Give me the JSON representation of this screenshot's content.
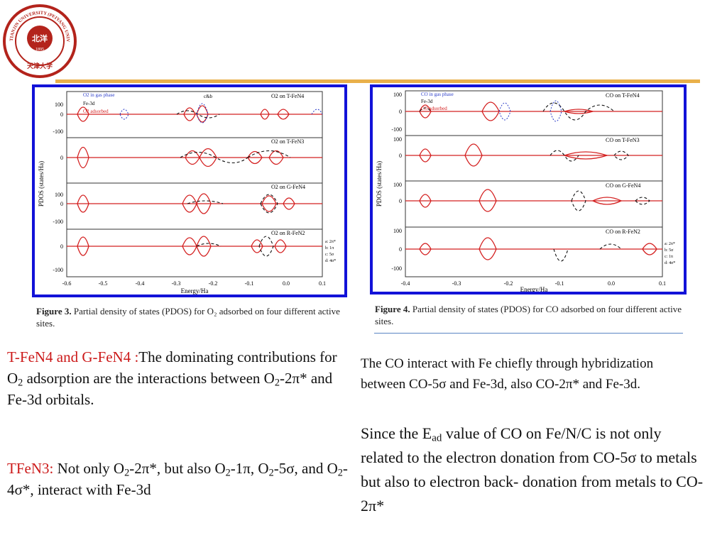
{
  "logo": {
    "name_top": "TIANJIN UNIVERSITY (PEIYANG UNIVERSITY)",
    "year": "1895",
    "seal": "北洋",
    "name_bottom": "天津大学"
  },
  "figure3": {
    "ylabel": "PDOS (states/Ha)",
    "xlabel": "Energy/Ha",
    "xticks": [
      "-0.6",
      "-0.5",
      "-0.4",
      "-0.3",
      "-0.2",
      "-0.1",
      "0.0",
      "0.1"
    ],
    "legend": [
      "O2 in gas phase",
      "Fe-3d",
      "O2 adsorbed"
    ],
    "legend_extra": "c&b",
    "panels": [
      "O2 on T-FeN4",
      "O2 on T-FeN3",
      "O2 on G-FeN4",
      "O2 on R-FeN2"
    ],
    "ytick_labels": [
      "100",
      "0",
      "-100"
    ],
    "key": [
      "a: 2π*",
      "b: 1π",
      "c: 5σ",
      "d: 4σ*"
    ],
    "caption_label": "Figure 3.",
    "caption_text": "Partial density of states (PDOS) for O₂ adsorbed on four different active sites."
  },
  "figure4": {
    "ylabel": "PDOS (states/Ha)",
    "xlabel": "Energy/Ha",
    "xticks": [
      "-0.4",
      "-0.3",
      "-0.2",
      "-0.1",
      "0.0",
      "0.1"
    ],
    "legend": [
      "CO in gas phase",
      "Fe-3d",
      "CO adsorbed"
    ],
    "panels": [
      "CO on T-FeN4",
      "CO on T-FeN3",
      "CO on G-FeN4",
      "CO on R-FeN2"
    ],
    "ytick_labels": [
      "100",
      "0",
      "-100"
    ],
    "key": [
      "a: 2π*",
      "b: 5σ",
      "c: 1π",
      "d: 4σ*"
    ],
    "caption_label": "Figure 4.",
    "caption_text": "Partial density of states (PDOS) for CO adsorbed on four different active sites."
  },
  "left_text": {
    "p1_label": "T-FeN4 and G-FeN4 :",
    "p1_a": "The  dominating contributions for O",
    "p1_b": " adsorption  are the interactions between O",
    "p1_c": "-2π* and Fe-3d orbitals.",
    "p2_label": "TFeN3:",
    "p2_a": "  Not only O",
    "p2_b": "-2π*, but also O",
    "p2_c": "-1π, O",
    "p2_d": "-5σ, and O",
    "p2_e": "-4σ*, interact with Fe-3d",
    "sub2": "2"
  },
  "right_text": {
    "p1": "The CO interact with Fe chiefly through hybridization between CO-5σ and Fe-3d, also CO-2π* and Fe-3d.",
    "p2_a": "Since  the E",
    "p2_sub": "ad",
    "p2_b": "  value of CO on Fe/N/C is not only related to the electron donation from CO-5σ to metals but also to electron back- donation from metals to CO-2π*"
  },
  "colors": {
    "accent_bar": "#e9b04a",
    "figure_border": "#1212d8",
    "highlight_red": "#cc1a1a",
    "logo_red": "#b3231b",
    "curve_red": "#d42020",
    "curve_blue": "#2b3cc8"
  }
}
